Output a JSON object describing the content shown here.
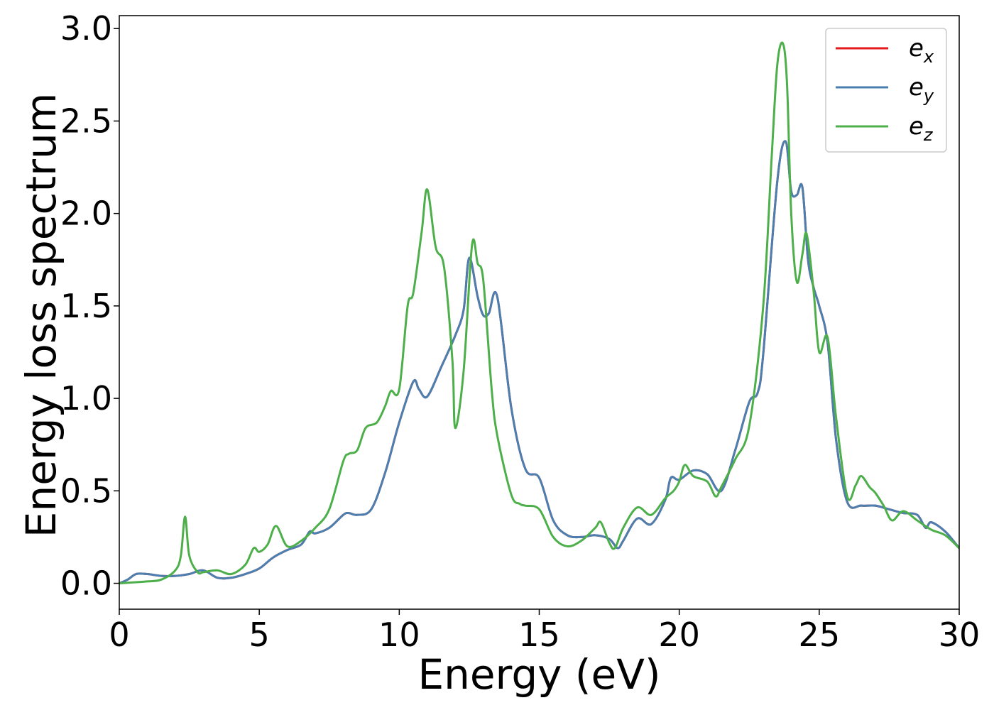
{
  "chart_data": {
    "type": "line",
    "title": "",
    "xlabel": "Energy (eV)",
    "ylabel": "Energy loss spectrum",
    "xlim": [
      0,
      30
    ],
    "ylim": [
      -0.14,
      3.07
    ],
    "xticks": [
      0,
      5,
      10,
      15,
      20,
      25,
      30
    ],
    "xtick_labels": [
      "0",
      "5",
      "10",
      "15",
      "20",
      "25",
      "30"
    ],
    "yticks": [
      0.0,
      0.5,
      1.0,
      1.5,
      2.0,
      2.5,
      3.0
    ],
    "ytick_labels": [
      "0.0",
      "0.5",
      "1.0",
      "1.5",
      "2.0",
      "2.5",
      "3.0"
    ],
    "grid": false,
    "legend_position": "top-right",
    "series": [
      {
        "name": "e_x",
        "label_base": "e",
        "label_sub": "x",
        "color": "#e41a1c",
        "x": [
          0,
          0.3,
          0.6,
          1.0,
          1.5,
          2.0,
          2.5,
          3.0,
          3.5,
          4.0,
          4.5,
          5.0,
          5.5,
          6.0,
          6.5,
          6.8,
          7.0,
          7.5,
          8.0,
          8.2,
          8.5,
          9.0,
          9.5,
          10.0,
          10.5,
          10.7,
          11.0,
          11.5,
          12.0,
          12.3,
          12.5,
          12.8,
          13.0,
          13.2,
          13.5,
          14.0,
          14.5,
          15.0,
          15.5,
          16.0,
          16.5,
          17.0,
          17.5,
          17.8,
          18.0,
          18.5,
          19.0,
          19.5,
          19.7,
          20.0,
          20.5,
          21.0,
          21.5,
          22.0,
          22.5,
          22.8,
          23.0,
          23.5,
          23.8,
          24.0,
          24.2,
          24.4,
          24.6,
          24.8,
          25.0,
          25.3,
          25.6,
          26.0,
          26.5,
          27.0,
          27.5,
          28.0,
          28.5,
          28.8,
          29.0,
          29.5,
          30.0
        ],
        "values": [
          0.0,
          0.02,
          0.05,
          0.05,
          0.04,
          0.04,
          0.05,
          0.07,
          0.03,
          0.03,
          0.05,
          0.08,
          0.14,
          0.18,
          0.21,
          0.28,
          0.27,
          0.3,
          0.37,
          0.38,
          0.37,
          0.4,
          0.6,
          0.87,
          1.09,
          1.05,
          1.01,
          1.17,
          1.34,
          1.48,
          1.76,
          1.55,
          1.45,
          1.46,
          1.55,
          0.95,
          0.62,
          0.57,
          0.34,
          0.26,
          0.25,
          0.26,
          0.24,
          0.19,
          0.23,
          0.35,
          0.32,
          0.45,
          0.57,
          0.56,
          0.61,
          0.59,
          0.5,
          0.72,
          0.98,
          1.03,
          1.24,
          2.17,
          2.39,
          2.12,
          2.1,
          2.14,
          1.75,
          1.6,
          1.5,
          1.3,
          0.78,
          0.44,
          0.42,
          0.42,
          0.4,
          0.38,
          0.37,
          0.3,
          0.33,
          0.28,
          0.19
        ]
      },
      {
        "name": "e_y",
        "label_base": "e",
        "label_sub": "y",
        "color": "#4a7fb0",
        "x": [
          0,
          0.3,
          0.6,
          1.0,
          1.5,
          2.0,
          2.5,
          3.0,
          3.5,
          4.0,
          4.5,
          5.0,
          5.5,
          6.0,
          6.5,
          6.8,
          7.0,
          7.5,
          8.0,
          8.2,
          8.5,
          9.0,
          9.5,
          10.0,
          10.5,
          10.7,
          11.0,
          11.5,
          12.0,
          12.3,
          12.5,
          12.8,
          13.0,
          13.2,
          13.5,
          14.0,
          14.5,
          15.0,
          15.5,
          16.0,
          16.5,
          17.0,
          17.5,
          17.8,
          18.0,
          18.5,
          19.0,
          19.5,
          19.7,
          20.0,
          20.5,
          21.0,
          21.5,
          22.0,
          22.5,
          22.8,
          23.0,
          23.5,
          23.8,
          24.0,
          24.2,
          24.4,
          24.6,
          24.8,
          25.0,
          25.3,
          25.6,
          26.0,
          26.5,
          27.0,
          27.5,
          28.0,
          28.5,
          28.8,
          29.0,
          29.5,
          30.0
        ],
        "values": [
          0.0,
          0.02,
          0.05,
          0.05,
          0.04,
          0.04,
          0.05,
          0.07,
          0.03,
          0.03,
          0.05,
          0.08,
          0.14,
          0.18,
          0.21,
          0.28,
          0.27,
          0.3,
          0.37,
          0.38,
          0.37,
          0.4,
          0.6,
          0.87,
          1.09,
          1.05,
          1.01,
          1.17,
          1.34,
          1.48,
          1.76,
          1.55,
          1.45,
          1.46,
          1.55,
          0.95,
          0.62,
          0.57,
          0.34,
          0.26,
          0.25,
          0.26,
          0.24,
          0.19,
          0.23,
          0.35,
          0.32,
          0.45,
          0.57,
          0.56,
          0.61,
          0.59,
          0.5,
          0.72,
          0.98,
          1.03,
          1.24,
          2.17,
          2.39,
          2.12,
          2.1,
          2.14,
          1.75,
          1.6,
          1.5,
          1.3,
          0.78,
          0.44,
          0.42,
          0.42,
          0.4,
          0.38,
          0.37,
          0.3,
          0.33,
          0.28,
          0.19
        ]
      },
      {
        "name": "e_z",
        "label_base": "e",
        "label_sub": "z",
        "color": "#4daf4a",
        "x": [
          0,
          1.0,
          1.5,
          2.0,
          2.2,
          2.35,
          2.5,
          2.8,
          3.0,
          3.5,
          4.0,
          4.5,
          4.8,
          5.0,
          5.3,
          5.6,
          6.0,
          6.5,
          7.0,
          7.5,
          8.0,
          8.2,
          8.5,
          8.8,
          9.2,
          9.5,
          9.7,
          10.0,
          10.3,
          10.5,
          10.8,
          11.0,
          11.3,
          11.6,
          11.9,
          12.0,
          12.3,
          12.6,
          12.8,
          13.0,
          13.3,
          13.5,
          14.0,
          14.3,
          14.5,
          15.0,
          15.5,
          16.0,
          16.5,
          17.0,
          17.2,
          17.5,
          17.7,
          18.0,
          18.5,
          19.0,
          19.5,
          19.8,
          20.0,
          20.2,
          20.5,
          21.0,
          21.3,
          21.5,
          22.0,
          22.5,
          23.0,
          23.3,
          23.5,
          23.7,
          23.85,
          24.0,
          24.2,
          24.4,
          24.55,
          24.8,
          25.0,
          25.3,
          25.6,
          26.0,
          26.3,
          26.5,
          26.8,
          27.0,
          27.3,
          27.6,
          28.0,
          28.5,
          29.0,
          29.5,
          30.0
        ],
        "values": [
          0.0,
          0.01,
          0.02,
          0.07,
          0.15,
          0.36,
          0.15,
          0.06,
          0.06,
          0.07,
          0.05,
          0.1,
          0.19,
          0.17,
          0.21,
          0.31,
          0.2,
          0.23,
          0.3,
          0.4,
          0.66,
          0.7,
          0.72,
          0.84,
          0.87,
          0.96,
          1.04,
          1.05,
          1.5,
          1.57,
          1.9,
          2.13,
          1.82,
          1.71,
          1.2,
          0.84,
          1.15,
          1.83,
          1.73,
          1.64,
          1.05,
          0.8,
          0.48,
          0.43,
          0.42,
          0.4,
          0.25,
          0.2,
          0.23,
          0.3,
          0.33,
          0.22,
          0.19,
          0.3,
          0.41,
          0.37,
          0.46,
          0.5,
          0.55,
          0.64,
          0.58,
          0.55,
          0.47,
          0.52,
          0.67,
          0.85,
          1.5,
          2.3,
          2.8,
          2.92,
          2.7,
          2.0,
          1.63,
          1.78,
          1.89,
          1.58,
          1.25,
          1.33,
          0.9,
          0.47,
          0.53,
          0.58,
          0.52,
          0.49,
          0.42,
          0.34,
          0.39,
          0.34,
          0.29,
          0.26,
          0.19
        ]
      }
    ]
  }
}
